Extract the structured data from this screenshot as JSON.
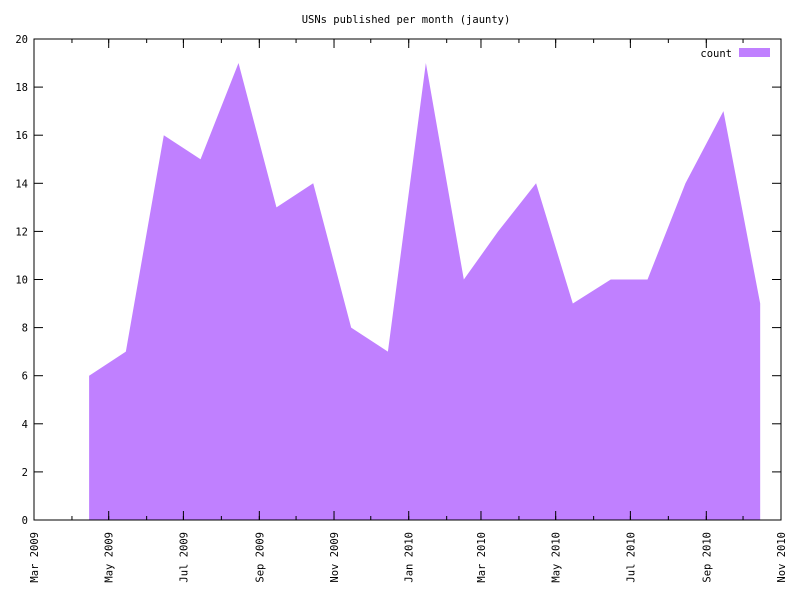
{
  "chart_data": {
    "type": "area",
    "title": "USNs published per month (jaunty)",
    "xlabel": "",
    "ylabel": "",
    "x": [
      "2009-04-15",
      "2009-05-15",
      "2009-06-15",
      "2009-07-15",
      "2009-08-15",
      "2009-09-15",
      "2009-10-15",
      "2009-11-15",
      "2009-12-15",
      "2010-01-15",
      "2010-02-15",
      "2010-03-15",
      "2010-04-15",
      "2010-05-15",
      "2010-06-15",
      "2010-07-15",
      "2010-08-15",
      "2010-09-15",
      "2010-10-15"
    ],
    "series": [
      {
        "name": "count",
        "color": "#c080ff",
        "values": [
          6,
          7,
          16,
          15,
          19,
          13,
          14,
          8,
          7,
          19,
          10,
          12,
          14,
          9,
          10,
          10,
          14,
          17,
          9
        ]
      }
    ],
    "xlim": [
      "2009-03-01",
      "2010-11-01"
    ],
    "ylim": [
      0,
      20
    ],
    "xticks": [
      {
        "date": "2009-03-01",
        "label": "Mar 2009"
      },
      {
        "date": "2009-05-01",
        "label": "May 2009"
      },
      {
        "date": "2009-07-01",
        "label": "Jul 2009"
      },
      {
        "date": "2009-09-01",
        "label": "Sep 2009"
      },
      {
        "date": "2009-11-01",
        "label": "Nov 2009"
      },
      {
        "date": "2010-01-01",
        "label": "Jan 2010"
      },
      {
        "date": "2010-03-01",
        "label": "Mar 2010"
      },
      {
        "date": "2010-05-01",
        "label": "May 2010"
      },
      {
        "date": "2010-07-01",
        "label": "Jul 2010"
      },
      {
        "date": "2010-09-01",
        "label": "Sep 2010"
      },
      {
        "date": "2010-11-01",
        "label": "Nov 2010"
      }
    ],
    "yticks": [
      0,
      2,
      4,
      6,
      8,
      10,
      12,
      14,
      16,
      18,
      20
    ],
    "grid": false,
    "legend_position": "top-right",
    "colors": {
      "fill": "#c080ff",
      "axis": "#000000",
      "background": "#ffffff"
    }
  }
}
